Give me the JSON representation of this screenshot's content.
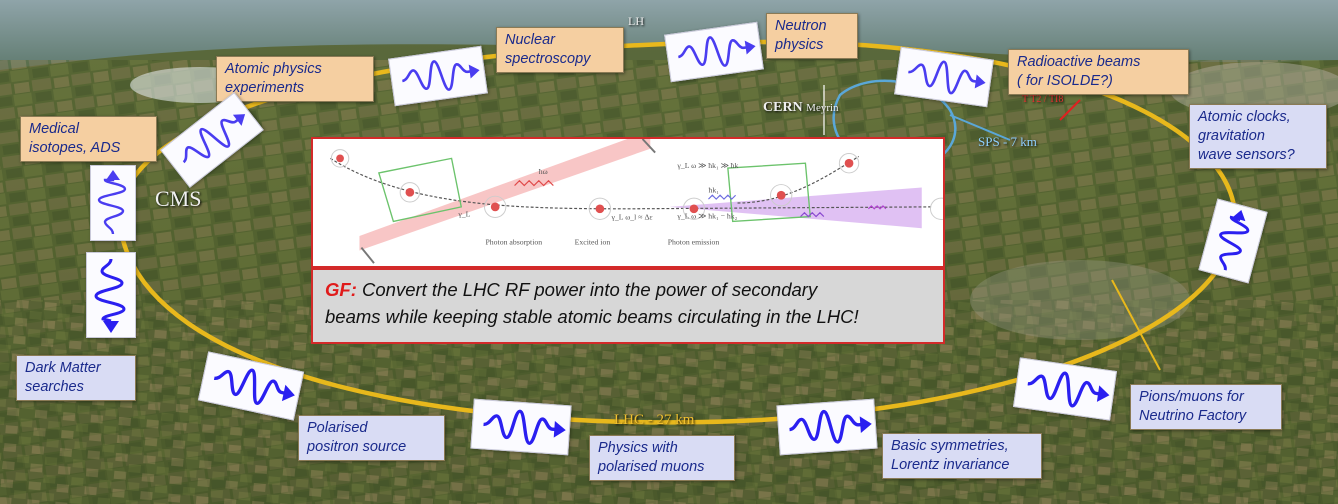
{
  "map": {
    "ring_label": "LHC - 27 km",
    "sps_label": "SPS - 7 km",
    "cms_label": "CMS",
    "cern_label": "CERN",
    "cern_sub": "Meyrin",
    "lhcb_fragment": "LH",
    "red_fragment": "T T2 / TI8"
  },
  "applications": {
    "atomic_physics": [
      "Atomic physics",
      "experiments"
    ],
    "nuclear": [
      "Nuclear",
      "spectroscopy"
    ],
    "neutron": [
      "Neutron",
      "physics"
    ],
    "radioactive": [
      "Radioactive beams",
      "( for ISOLDE?)"
    ],
    "medical": [
      "Medical",
      "isotopes, ADS"
    ],
    "clocks": [
      "Atomic clocks,",
      "gravitation",
      "wave sensors?"
    ],
    "dark_matter": [
      "Dark Matter",
      "searches"
    ],
    "positron": [
      "Polarised",
      "positron source"
    ],
    "muons": [
      "Physics with",
      "polarised muons"
    ],
    "symmetries": [
      "Basic symmetries,",
      "Lorentz invariance"
    ],
    "pions": [
      "Pions/muons for",
      "Neutrino Factory"
    ]
  },
  "inset": {
    "photon_absorption": "Photon absorption",
    "excited_ion": "Excited ion",
    "photon_emission": "Photon emission",
    "gamma_l": "γ_L",
    "gamma_cond": "γ_L ω_l ≈ Δε",
    "hw": "ħω",
    "emit_top": "γ_L ω ≫ ħk₁ ≫ ħk",
    "emit_k": "ħk₁",
    "emit_bottom": "γ_L ω ≫ ħk₁ − ħk₂"
  },
  "gf": {
    "key": "GF:",
    "line1": "Convert the LHC RF power into the power of secondary",
    "line2": "beams while keeping stable atomic beams circulating in the LHC!"
  },
  "colors": {
    "ring": "#e8b81c",
    "peach_box": "#f5cfa1",
    "lilac_box": "#d9dcf4",
    "label_text": "#1a2a8c",
    "wave": "#4a3df0",
    "frame": "#d32a2a",
    "sps_line": "#5aa7d8"
  },
  "icons": {
    "wave_packet": "wave-packet-arrow-icon",
    "ion": "ion-icon"
  }
}
